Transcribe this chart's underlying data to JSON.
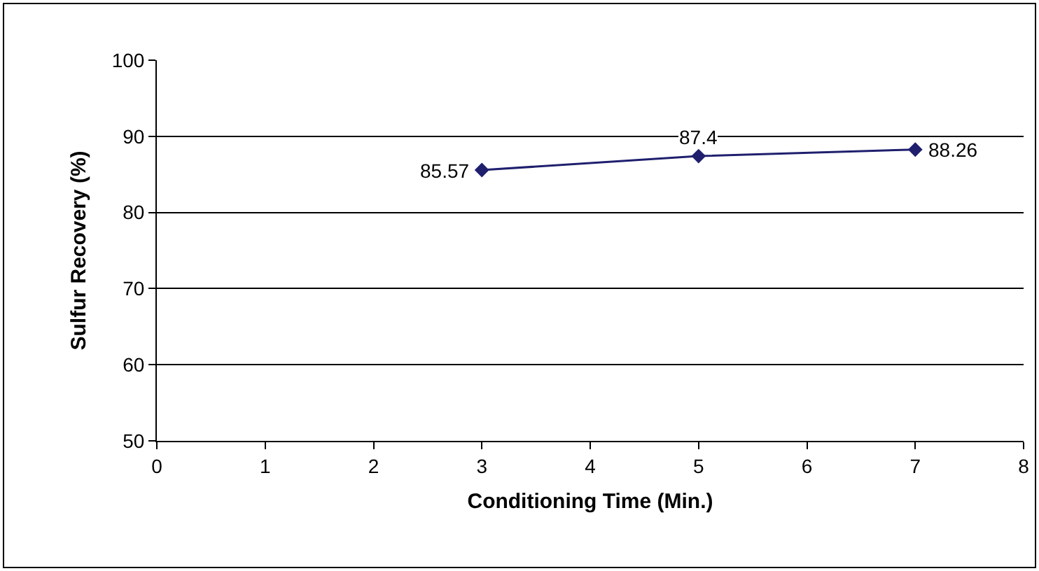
{
  "chart_data": {
    "type": "line",
    "xlabel": "Conditioning Time (Min.)",
    "ylabel": "Sulfur Recovery (%)",
    "x": [
      3,
      5,
      7
    ],
    "series": [
      {
        "color": "#1f1f6e",
        "values": [
          85.57,
          87.4,
          88.26
        ]
      }
    ],
    "xlim": [
      0,
      8
    ],
    "xticks": [
      0,
      1,
      2,
      3,
      4,
      5,
      6,
      7,
      8
    ],
    "ylim": [
      50,
      100
    ],
    "yticks": [
      50,
      60,
      70,
      80,
      90,
      100
    ],
    "grid": "y",
    "marker": "diamond",
    "line_style": "solid",
    "data_labels": true
  }
}
